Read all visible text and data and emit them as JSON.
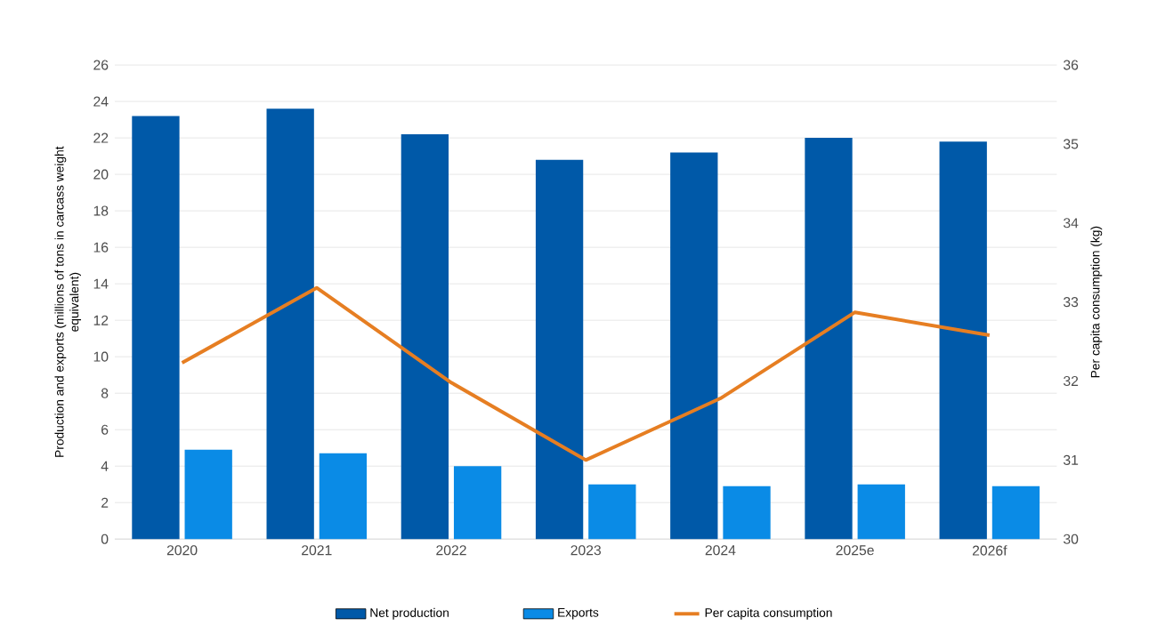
{
  "chart_data": {
    "type": "bar",
    "categories": [
      "2020",
      "2021",
      "2022",
      "2023",
      "2024",
      "2025e",
      "2026f"
    ],
    "ylabel": "Production and exports (millions of tons in carcass weight equivalent)",
    "y2label": "Per capita consumption (kg)",
    "ylim": [
      0,
      26
    ],
    "yticks": [
      0,
      2,
      4,
      6,
      8,
      10,
      12,
      14,
      16,
      18,
      20,
      22,
      24,
      26
    ],
    "y2lim": [
      30,
      36
    ],
    "y2ticks": [
      30,
      31,
      32,
      33,
      34,
      35,
      36
    ],
    "grid": "y",
    "legend": "bottom",
    "series": [
      {
        "name": "Net production",
        "color": "#0059a8",
        "values": [
          23.2,
          23.6,
          22.2,
          20.8,
          21.2,
          22.0,
          21.8
        ]
      },
      {
        "name": "Exports",
        "color": "#0a8be6",
        "values": [
          4.9,
          4.7,
          4.0,
          3.0,
          2.9,
          3.0,
          2.9
        ]
      },
      {
        "name": "Per capita consumption",
        "type": "line",
        "axis": "y2",
        "color": "#e67e22",
        "values": [
          32.23,
          33.18,
          31.98,
          31.0,
          31.78,
          32.87,
          32.58
        ]
      }
    ]
  }
}
